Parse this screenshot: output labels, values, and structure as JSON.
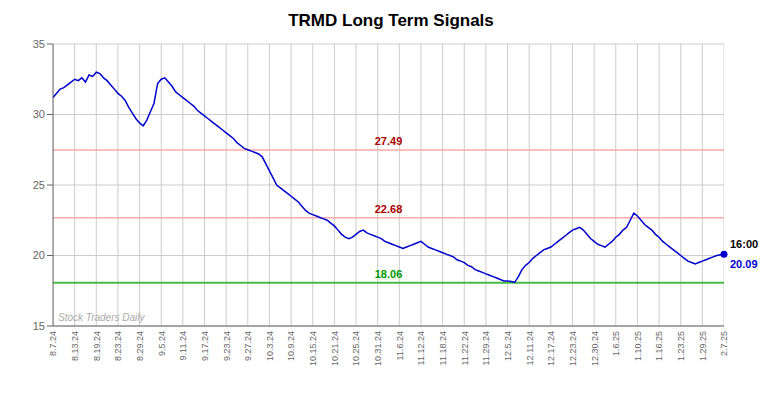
{
  "chart_data": {
    "type": "line",
    "title": "TRMD Long Term Signals",
    "categories": [
      "8.7.24",
      null,
      null,
      null,
      null,
      null,
      "8.13.24",
      null,
      null,
      null,
      null,
      null,
      "8.19.24",
      null,
      null,
      null,
      null,
      null,
      "8.23.24",
      null,
      null,
      null,
      null,
      null,
      "8.29.24",
      null,
      null,
      null,
      null,
      null,
      "9.5.24",
      null,
      null,
      null,
      null,
      null,
      "9.11.24",
      null,
      null,
      null,
      null,
      null,
      "9.17.24",
      null,
      null,
      null,
      null,
      null,
      "9.23.24",
      null,
      null,
      null,
      null,
      null,
      "9.27.24",
      null,
      null,
      null,
      null,
      null,
      "10.3.24",
      null,
      null,
      null,
      null,
      null,
      "10.9.24",
      null,
      null,
      null,
      null,
      null,
      "10.15.24",
      null,
      null,
      null,
      null,
      null,
      "10.21.24",
      null,
      null,
      null,
      null,
      null,
      "10.25.24",
      null,
      null,
      null,
      null,
      null,
      "10.31.24",
      null,
      null,
      null,
      null,
      null,
      "11.6.24",
      null,
      null,
      null,
      null,
      null,
      "11.12.24",
      null,
      null,
      null,
      null,
      null,
      "11.18.24",
      null,
      null,
      null,
      null,
      null,
      "11.22.24",
      null,
      null,
      null,
      null,
      null,
      "11.29.24",
      null,
      null,
      null,
      null,
      null,
      "12.5.24",
      null,
      null,
      null,
      null,
      null,
      "12.11.24",
      null,
      null,
      null,
      null,
      null,
      "12.17.24",
      null,
      null,
      null,
      null,
      null,
      "12.23.24",
      null,
      null,
      null,
      null,
      null,
      "12.30.24",
      null,
      null,
      null,
      null,
      null,
      "1.6.25",
      null,
      null,
      null,
      null,
      null,
      "1.10.25",
      null,
      null,
      null,
      null,
      null,
      "1.16.25",
      null,
      null,
      null,
      null,
      null,
      "1.23.25",
      null,
      null,
      null,
      null,
      null,
      "1.29.25",
      null,
      null,
      null,
      null,
      null,
      "2.7.25"
    ],
    "values": [
      31.2,
      31.5,
      31.8,
      31.9,
      32.1,
      32.3,
      32.5,
      32.4,
      32.6,
      32.3,
      32.8,
      32.7,
      33.0,
      32.9,
      32.6,
      32.4,
      32.1,
      31.8,
      31.5,
      31.3,
      31.0,
      30.5,
      30.1,
      29.7,
      29.4,
      29.2,
      29.6,
      30.2,
      30.8,
      32.2,
      32.5,
      32.6,
      32.3,
      32.0,
      31.6,
      31.4,
      31.2,
      31.0,
      30.8,
      30.6,
      30.3,
      30.1,
      29.9,
      29.7,
      29.5,
      29.3,
      29.1,
      28.9,
      28.7,
      28.5,
      28.3,
      28.0,
      27.8,
      27.6,
      27.5,
      27.4,
      27.3,
      27.2,
      27.0,
      26.5,
      26.0,
      25.5,
      25.0,
      24.8,
      24.6,
      24.4,
      24.2,
      24.0,
      23.8,
      23.5,
      23.2,
      23.0,
      22.9,
      22.8,
      22.7,
      22.6,
      22.5,
      22.3,
      22.1,
      21.8,
      21.5,
      21.3,
      21.2,
      21.3,
      21.5,
      21.7,
      21.8,
      21.6,
      21.5,
      21.4,
      21.3,
      21.2,
      21.0,
      20.9,
      20.8,
      20.7,
      20.6,
      20.5,
      20.6,
      20.7,
      20.8,
      20.9,
      21.0,
      20.8,
      20.6,
      20.5,
      20.4,
      20.3,
      20.2,
      20.1,
      20.0,
      19.9,
      19.7,
      19.6,
      19.5,
      19.3,
      19.2,
      19.0,
      18.9,
      18.8,
      18.7,
      18.6,
      18.5,
      18.4,
      18.3,
      18.2,
      18.2,
      18.15,
      18.1,
      18.5,
      19.0,
      19.3,
      19.5,
      19.8,
      20.0,
      20.2,
      20.4,
      20.5,
      20.6,
      20.8,
      21.0,
      21.2,
      21.4,
      21.6,
      21.8,
      21.9,
      22.0,
      21.8,
      21.5,
      21.2,
      21.0,
      20.8,
      20.7,
      20.6,
      20.8,
      21.0,
      21.3,
      21.5,
      21.8,
      22.0,
      22.5,
      23.0,
      22.8,
      22.5,
      22.2,
      22.0,
      21.8,
      21.5,
      21.3,
      21.0,
      20.8,
      20.6,
      20.4,
      20.2,
      20.0,
      19.8,
      19.6,
      19.5,
      19.4,
      19.5,
      19.6,
      19.7,
      19.8,
      19.9,
      20.0,
      20.05,
      20.09
    ],
    "color": "#0000cc",
    "ylim": [
      15,
      35
    ],
    "yticks": [
      15,
      20,
      25,
      30,
      35
    ],
    "grid": true,
    "reference_lines": [
      {
        "y": 27.49,
        "color": "#ffaaaa",
        "label": "27.49",
        "label_color": "#aa0000"
      },
      {
        "y": 22.68,
        "color": "#ffaaaa",
        "label": "22.68",
        "label_color": "#aa0000"
      },
      {
        "y": 18.06,
        "color": "#44bb44",
        "label": "18.06",
        "label_color": "#009900"
      }
    ],
    "end_labels": [
      {
        "text": "16:00",
        "color": "#000000"
      },
      {
        "text": "20.09",
        "color": "#0000cc"
      }
    ],
    "watermark": {
      "text": "Stock Traders Daily",
      "color": "#aaaaaa"
    }
  }
}
